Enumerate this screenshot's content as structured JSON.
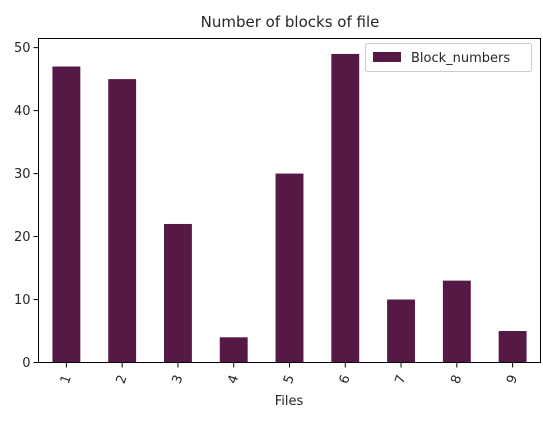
{
  "chart_data": {
    "type": "bar",
    "title": "Number of blocks of file",
    "xlabel": "Files",
    "ylabel": "",
    "categories": [
      "1",
      "2",
      "3",
      "4",
      "5",
      "6",
      "7",
      "8",
      "9"
    ],
    "series": [
      {
        "name": "Block_numbers",
        "values": [
          47,
          45,
          22,
          4,
          30,
          49,
          10,
          13,
          5
        ],
        "color": "#561845"
      }
    ],
    "ylim": [
      0,
      51.45
    ],
    "yticks": [
      0,
      10,
      20,
      30,
      40,
      50
    ],
    "grid": false,
    "legend_position": "top-right",
    "x_tick_rotation": "rotated"
  }
}
